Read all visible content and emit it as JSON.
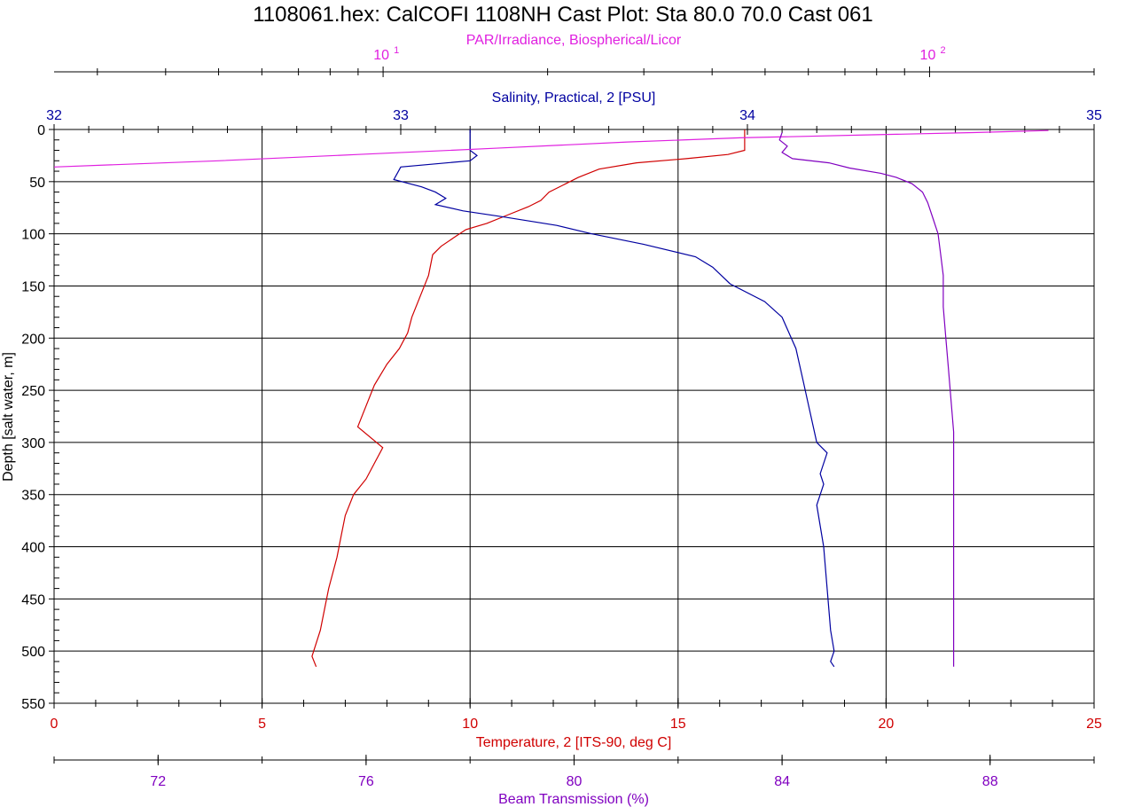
{
  "chart_data": {
    "type": "line",
    "title": "1108061.hex: CalCOFI 1108NH Cast Plot: Sta 80.0 70.0 Cast 061",
    "y_axis": {
      "label": "Depth [salt water, m]",
      "range": [
        0,
        550
      ],
      "reversed": true,
      "ticks": [
        "0",
        "50",
        "100",
        "150",
        "200",
        "250",
        "300",
        "350",
        "400",
        "450",
        "500",
        "550"
      ]
    },
    "axes": {
      "par": {
        "label": "PAR/Irradiance, Biospherical/Licor",
        "scale": "log",
        "range": [
          2.5,
          200
        ],
        "ticks": [
          {
            "v": 10,
            "base": "10",
            "exp": "1"
          },
          {
            "v": 100,
            "base": "10",
            "exp": "2"
          }
        ],
        "color": "#e020e0"
      },
      "salinity": {
        "label": "Salinity, Practical, 2 [PSU]",
        "range": [
          32,
          35
        ],
        "ticks": [
          "32",
          "33",
          "34",
          "35"
        ],
        "color": "#0000a0"
      },
      "temperature": {
        "label": "Temperature, 2 [ITS-90, deg C]",
        "range": [
          0,
          25
        ],
        "ticks": [
          "0",
          "5",
          "10",
          "15",
          "20",
          "25"
        ],
        "color": "#d00000"
      },
      "beam": {
        "label": "Beam Transmission (%)",
        "range": [
          70,
          90
        ],
        "ticks": [
          "72",
          "76",
          "80",
          "84",
          "88"
        ],
        "color": "#8000c0"
      }
    },
    "grid": true,
    "series": [
      {
        "key": "temperature",
        "color": "#d00000",
        "points": [
          [
            16.6,
            0
          ],
          [
            16.6,
            20
          ],
          [
            16.2,
            24
          ],
          [
            15.2,
            28
          ],
          [
            14.0,
            32
          ],
          [
            13.1,
            38
          ],
          [
            12.6,
            46
          ],
          [
            12.3,
            52
          ],
          [
            11.9,
            60
          ],
          [
            11.7,
            68
          ],
          [
            11.4,
            74
          ],
          [
            10.9,
            82
          ],
          [
            10.4,
            90
          ],
          [
            9.9,
            96
          ],
          [
            9.6,
            104
          ],
          [
            9.3,
            112
          ],
          [
            9.1,
            120
          ],
          [
            9.0,
            140
          ],
          [
            8.8,
            160
          ],
          [
            8.6,
            180
          ],
          [
            8.5,
            195
          ],
          [
            8.3,
            210
          ],
          [
            8.0,
            225
          ],
          [
            7.7,
            245
          ],
          [
            7.5,
            265
          ],
          [
            7.3,
            285
          ],
          [
            7.9,
            305
          ],
          [
            7.7,
            320
          ],
          [
            7.5,
            335
          ],
          [
            7.2,
            350
          ],
          [
            7.0,
            370
          ],
          [
            6.9,
            390
          ],
          [
            6.8,
            410
          ],
          [
            6.6,
            440
          ],
          [
            6.5,
            460
          ],
          [
            6.4,
            480
          ],
          [
            6.2,
            505
          ],
          [
            6.3,
            515
          ]
        ]
      },
      {
        "key": "salinity",
        "color": "#0000a0",
        "points": [
          [
            33.2,
            0
          ],
          [
            33.2,
            20
          ],
          [
            33.22,
            25
          ],
          [
            33.2,
            30
          ],
          [
            33.0,
            36
          ],
          [
            32.99,
            42
          ],
          [
            32.98,
            48
          ],
          [
            33.06,
            55
          ],
          [
            33.1,
            60
          ],
          [
            33.13,
            66
          ],
          [
            33.1,
            72
          ],
          [
            33.18,
            78
          ],
          [
            33.3,
            84
          ],
          [
            33.45,
            92
          ],
          [
            33.55,
            100
          ],
          [
            33.7,
            110
          ],
          [
            33.85,
            122
          ],
          [
            33.9,
            132
          ],
          [
            33.95,
            148
          ],
          [
            34.05,
            165
          ],
          [
            34.1,
            180
          ],
          [
            34.12,
            195
          ],
          [
            34.14,
            210
          ],
          [
            34.16,
            240
          ],
          [
            34.18,
            270
          ],
          [
            34.2,
            300
          ],
          [
            34.23,
            310
          ],
          [
            34.21,
            330
          ],
          [
            34.22,
            340
          ],
          [
            34.2,
            360
          ],
          [
            34.21,
            380
          ],
          [
            34.22,
            400
          ],
          [
            34.23,
            440
          ],
          [
            34.24,
            480
          ],
          [
            34.25,
            500
          ],
          [
            34.24,
            510
          ],
          [
            34.25,
            515
          ]
        ]
      },
      {
        "key": "par",
        "color": "#e020e0",
        "points": [
          [
            165,
            1
          ],
          [
            120,
            3
          ],
          [
            80,
            5
          ],
          [
            45,
            8
          ],
          [
            28,
            12
          ],
          [
            16,
            18
          ],
          [
            9,
            24
          ],
          [
            5,
            30
          ],
          [
            2.5,
            36
          ]
        ]
      },
      {
        "key": "beam",
        "color": "#8000c0",
        "points": [
          [
            84.0,
            3
          ],
          [
            83.95,
            10
          ],
          [
            84.1,
            16
          ],
          [
            84.0,
            22
          ],
          [
            84.2,
            28
          ],
          [
            84.9,
            32
          ],
          [
            85.3,
            37
          ],
          [
            85.9,
            42
          ],
          [
            86.2,
            46
          ],
          [
            86.5,
            52
          ],
          [
            86.7,
            60
          ],
          [
            86.8,
            70
          ],
          [
            86.9,
            85
          ],
          [
            87.0,
            100
          ],
          [
            87.05,
            120
          ],
          [
            87.1,
            140
          ],
          [
            87.1,
            170
          ],
          [
            87.15,
            200
          ],
          [
            87.2,
            230
          ],
          [
            87.25,
            260
          ],
          [
            87.3,
            290
          ],
          [
            87.3,
            320
          ],
          [
            87.3,
            360
          ],
          [
            87.3,
            400
          ],
          [
            87.3,
            440
          ],
          [
            87.3,
            480
          ],
          [
            87.3,
            515
          ]
        ]
      }
    ]
  }
}
